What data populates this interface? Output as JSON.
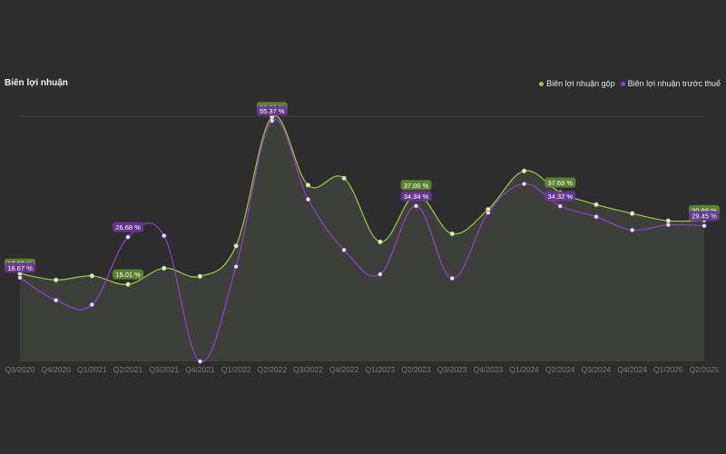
{
  "chart_data": {
    "type": "line",
    "title": "Biên lợi nhuận",
    "categories": [
      "Q3/2020",
      "Q4/2020",
      "Q1/2021",
      "Q2/2021",
      "Q3/2021",
      "Q4/2021",
      "Q1/2022",
      "Q2/2022",
      "Q3/2022",
      "Q4/2022",
      "Q1/2023",
      "Q2/2023",
      "Q3/2023",
      "Q4/2023",
      "Q1/2024",
      "Q2/2024",
      "Q3/2024",
      "Q4/2024",
      "Q1/2025",
      "Q2/2025"
    ],
    "series": [
      {
        "name": "Biên lợi nhuận gộp",
        "color": "#9ccc3d",
        "values": [
          17.69,
          16.1,
          17.1,
          15.01,
          19.0,
          17.0,
          24.5,
          56.29,
          39.5,
          41.2,
          25.5,
          37.06,
          27.5,
          33.5,
          43.0,
          37.69,
          34.7,
          32.5,
          30.7,
          30.86
        ]
      },
      {
        "name": "Biên lợi nhuận trước thuế",
        "color": "#8a45c4",
        "values": [
          16.67,
          11.1,
          10.0,
          26.68,
          27.0,
          -4.0,
          19.4,
          55.37,
          36.0,
          23.5,
          17.5,
          34.34,
          16.5,
          32.7,
          39.8,
          34.32,
          31.7,
          28.4,
          29.7,
          29.45
        ]
      }
    ],
    "data_labels": [
      {
        "series": 0,
        "index": 0,
        "text": "17.69 %"
      },
      {
        "series": 1,
        "index": 0,
        "text": "16.67 %"
      },
      {
        "series": 1,
        "index": 3,
        "text": "26.68 %"
      },
      {
        "series": 0,
        "index": 3,
        "text": "15.01 %"
      },
      {
        "series": 0,
        "index": 7,
        "text": "56.29 %"
      },
      {
        "series": 1,
        "index": 7,
        "text": "55.37 %"
      },
      {
        "series": 0,
        "index": 11,
        "text": "37.06 %"
      },
      {
        "series": 1,
        "index": 11,
        "text": "34.34 %"
      },
      {
        "series": 0,
        "index": 15,
        "text": "37.69 %"
      },
      {
        "series": 1,
        "index": 15,
        "text": "34.32 %"
      },
      {
        "series": 0,
        "index": 19,
        "text": "30.86 %"
      },
      {
        "series": 1,
        "index": 19,
        "text": "29.45 %"
      }
    ],
    "ylim": [
      -4,
      56.5
    ],
    "grid": true,
    "legend": "top-right",
    "colors": {
      "background": "#2d2d2d",
      "tick_text": "#7a7a7a",
      "grid": "#3f3f3f",
      "area": "#3a3a3c"
    }
  }
}
